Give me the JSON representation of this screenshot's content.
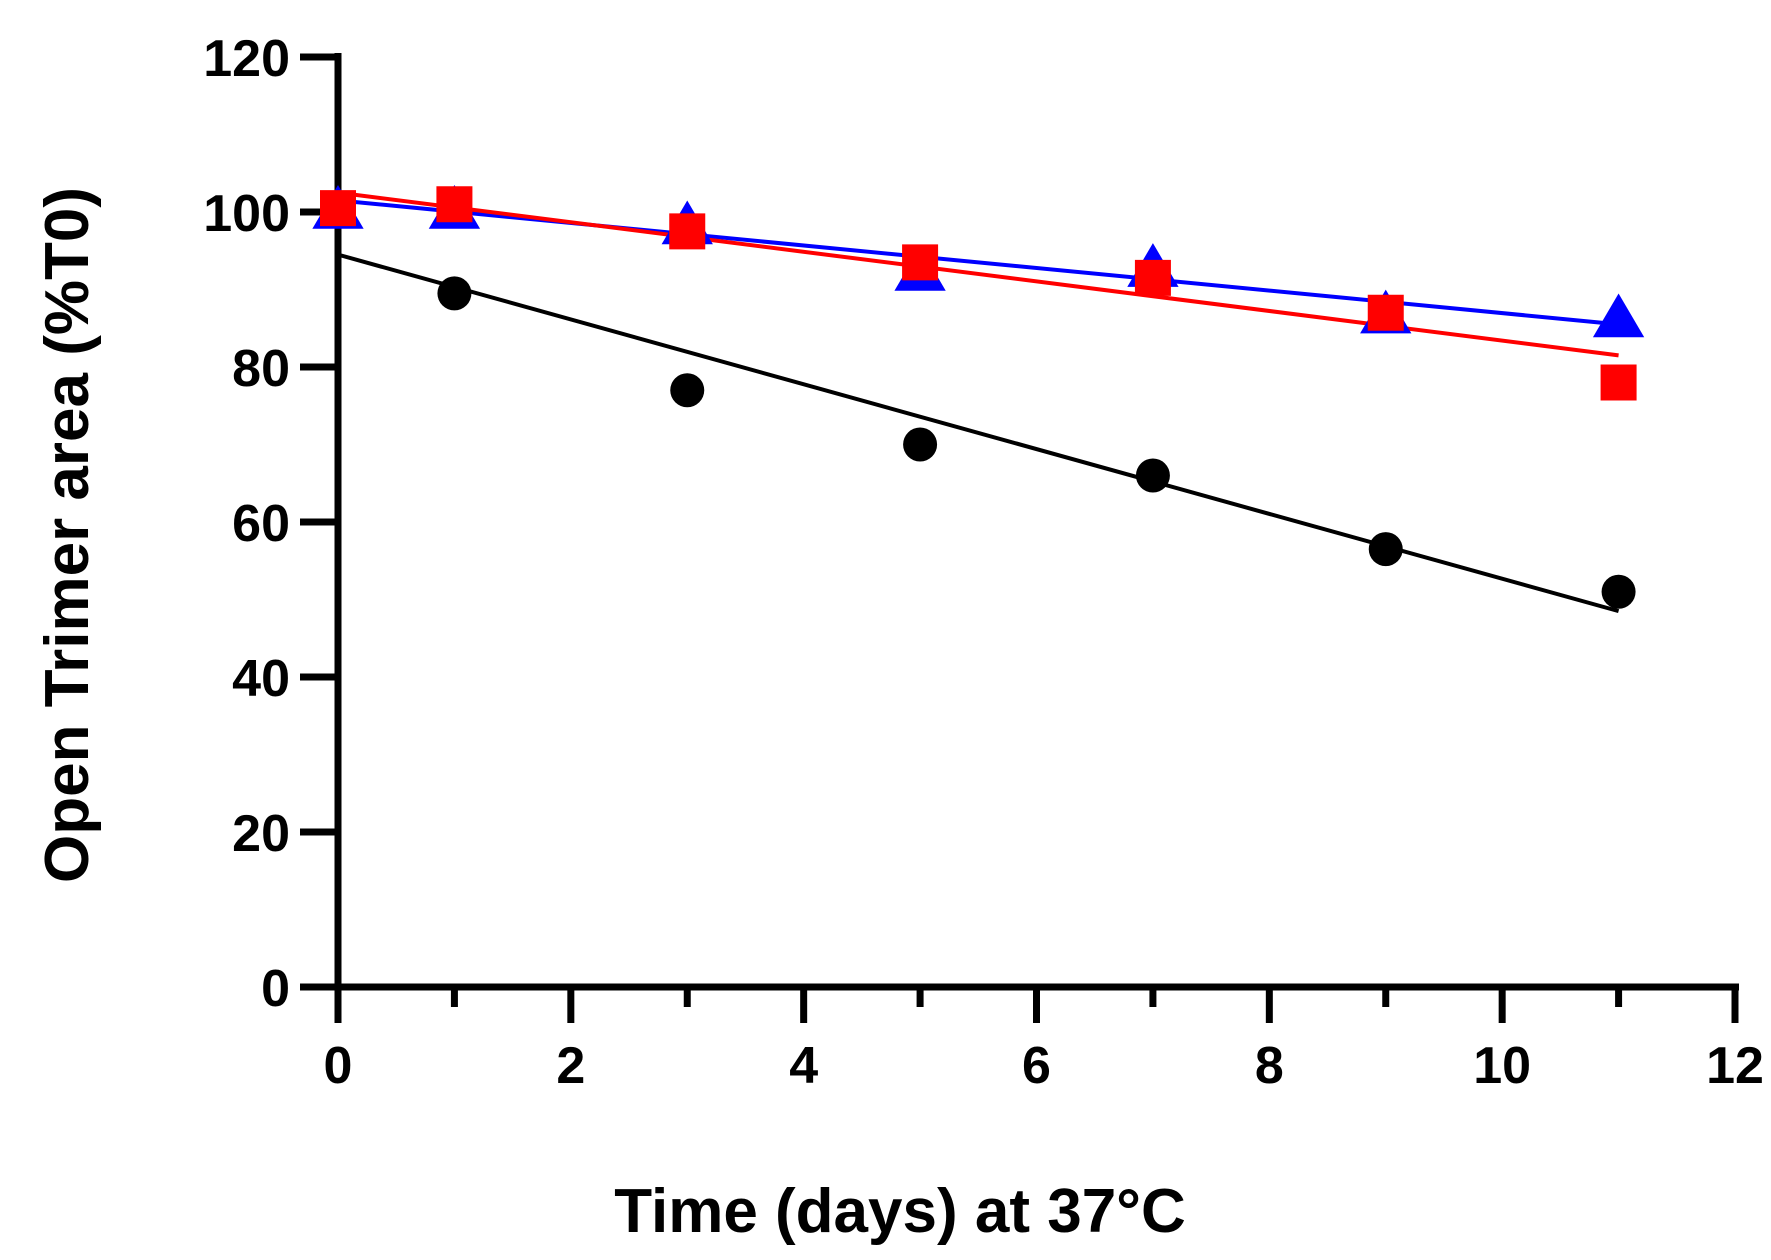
{
  "chart_data": {
    "type": "scatter",
    "title": "",
    "xlabel": "Time (days) at 37°C",
    "ylabel": "Open Trimer area (%T0)",
    "xlim": [
      0,
      12
    ],
    "ylim": [
      0,
      120
    ],
    "xticks": [
      0,
      2,
      4,
      6,
      8,
      10,
      12
    ],
    "yticks": [
      0,
      20,
      40,
      60,
      80,
      100,
      120
    ],
    "xminor_ticks": [
      1,
      3,
      5,
      7,
      9,
      11
    ],
    "grid": false,
    "legend": "none",
    "series": [
      {
        "name": "circle-series",
        "marker": "circle",
        "color": "#000000",
        "x": [
          1,
          3,
          5,
          7,
          9,
          11
        ],
        "y": [
          89.5,
          77,
          70,
          66,
          56.5,
          51
        ],
        "fit": {
          "x": [
            0,
            11
          ],
          "y": [
            94.5,
            48.5
          ]
        }
      },
      {
        "name": "triangle-series",
        "marker": "triangle",
        "color": "#0000ff",
        "x": [
          0,
          1,
          3,
          5,
          7,
          9,
          11
        ],
        "y": [
          100,
          100,
          98,
          92,
          92.5,
          86.5,
          86
        ],
        "fit": {
          "x": [
            0,
            11
          ],
          "y": [
            101.5,
            85.5
          ]
        }
      },
      {
        "name": "square-series",
        "marker": "square",
        "color": "#ff0000",
        "x": [
          0,
          1,
          3,
          5,
          7,
          9,
          11
        ],
        "y": [
          100.5,
          101,
          97.5,
          93.5,
          91.5,
          87,
          78
        ],
        "fit": {
          "x": [
            0,
            11
          ],
          "y": [
            102.5,
            81.5
          ]
        }
      }
    ]
  }
}
